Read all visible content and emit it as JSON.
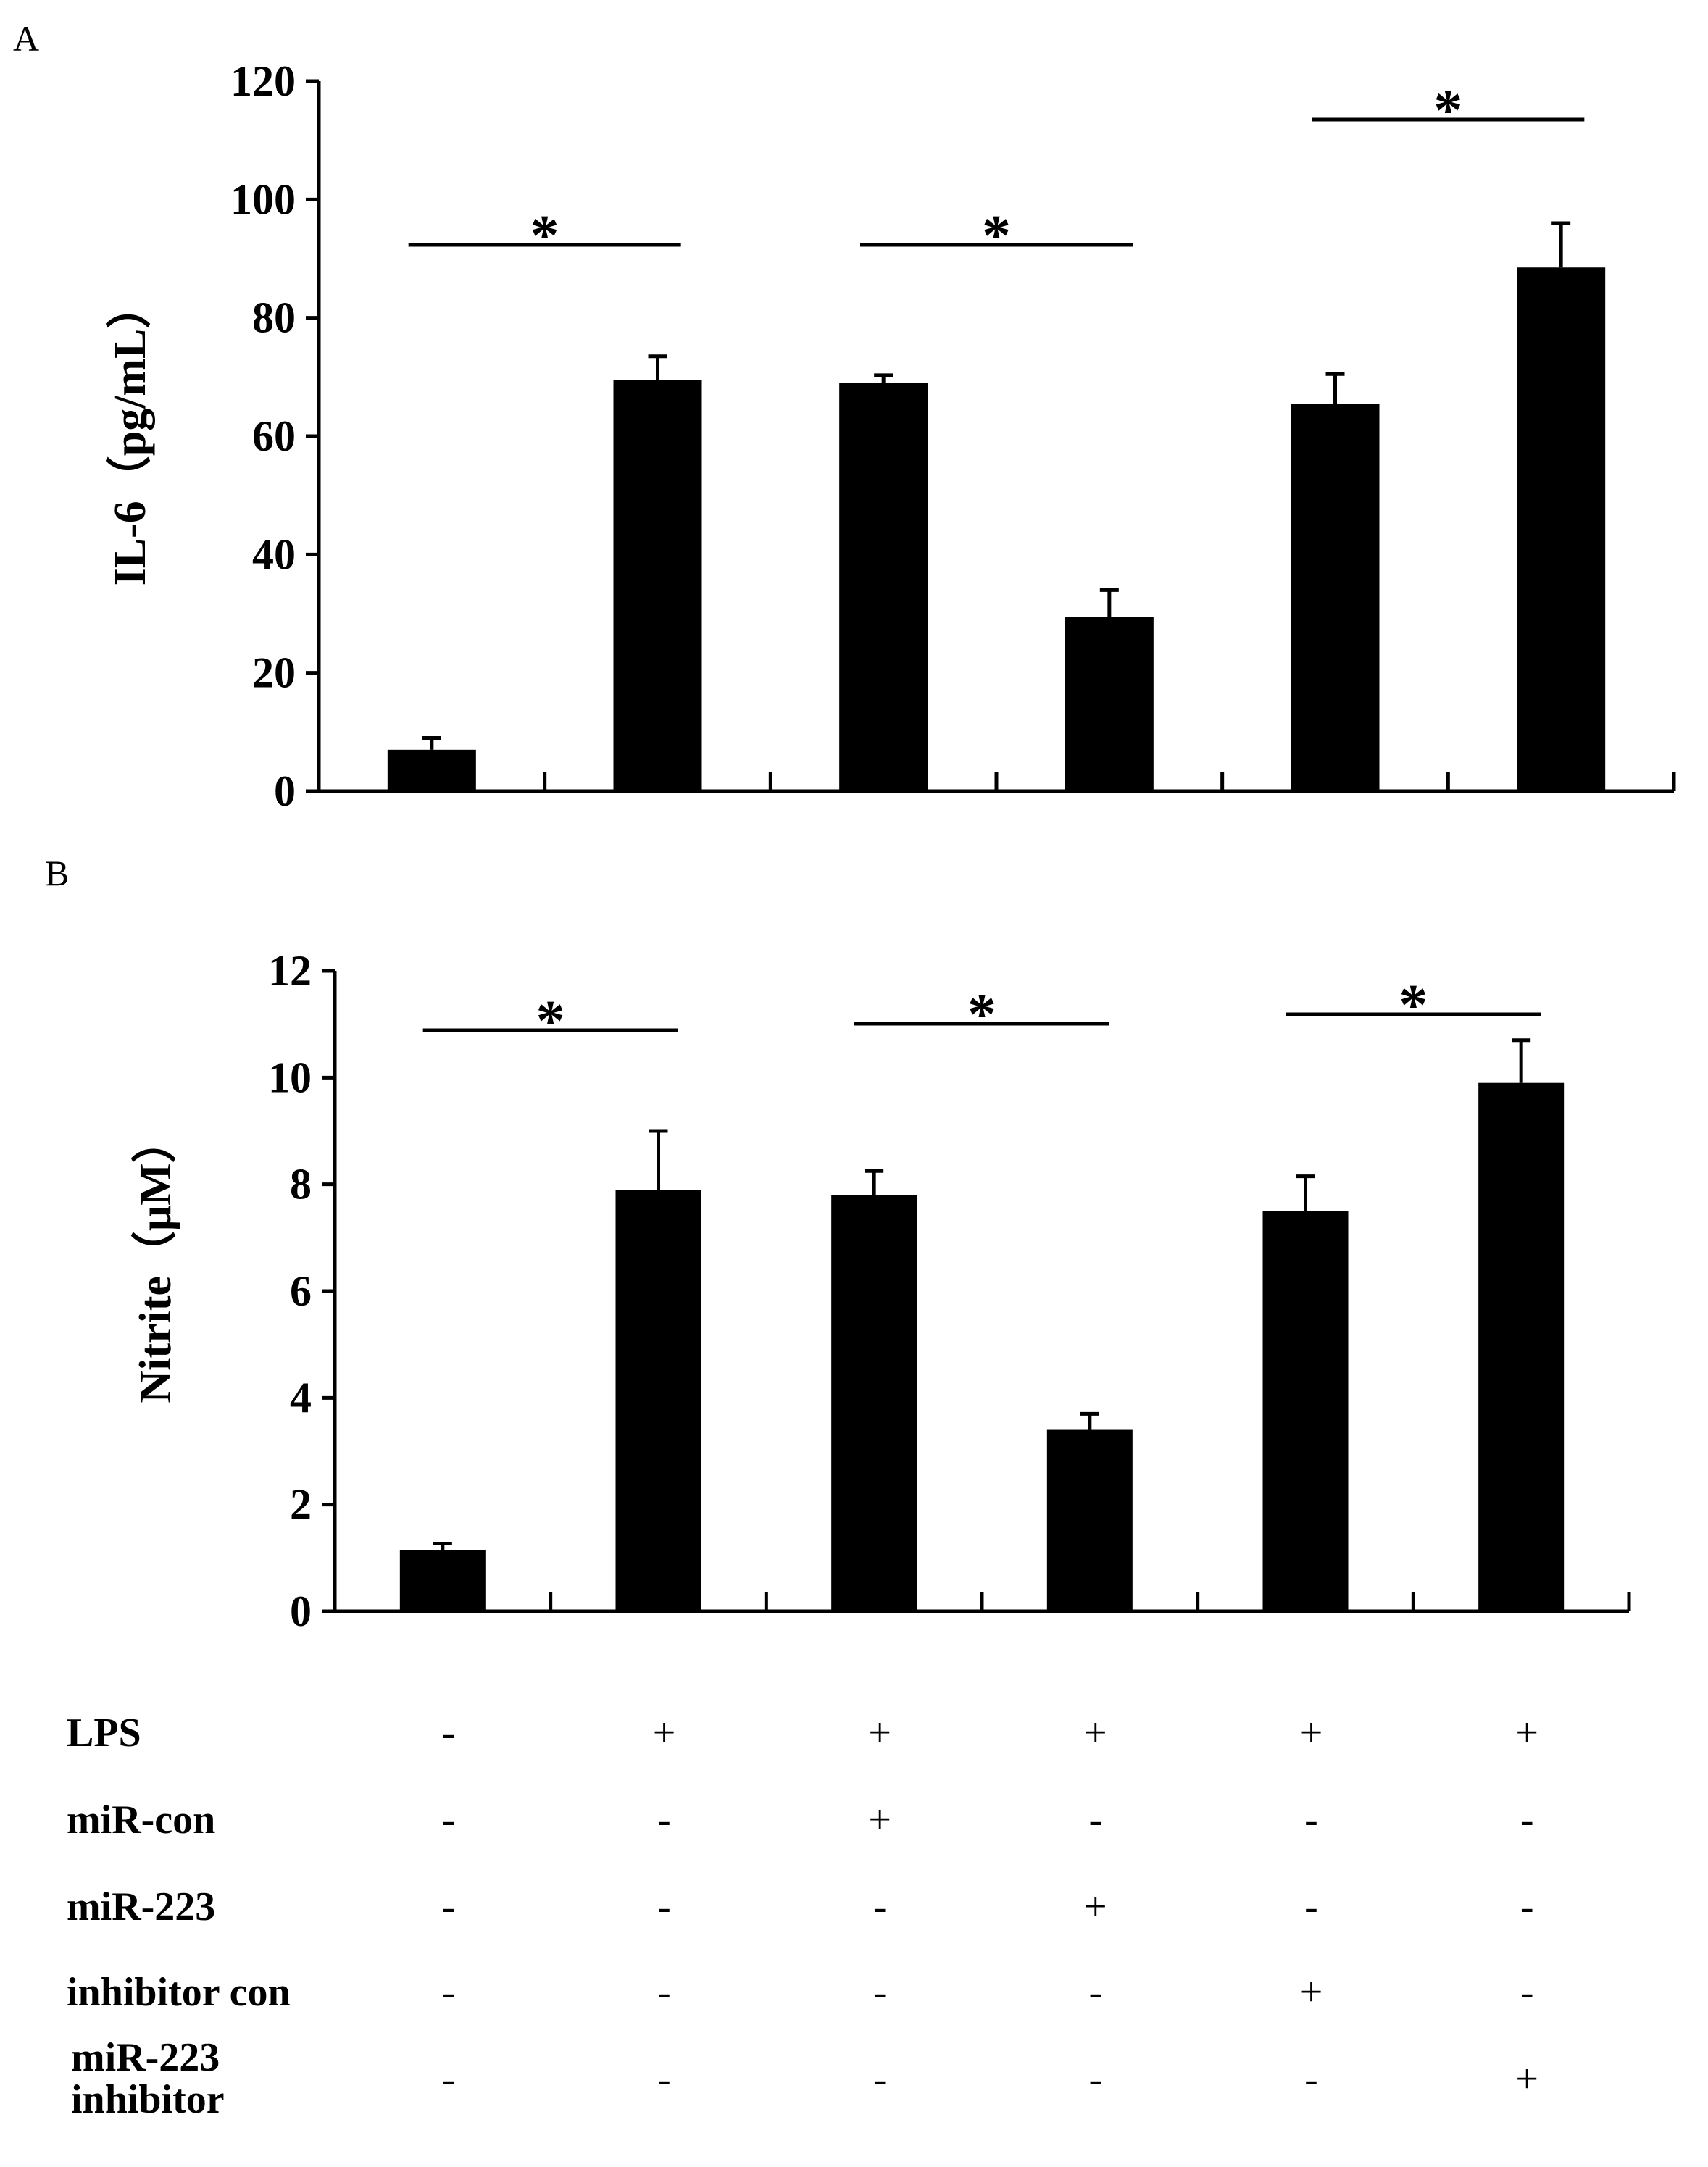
{
  "chart_data": [
    {
      "type": "bar",
      "panel": "A",
      "ylabel": "IL-6（pg/mL）",
      "ylim": [
        0,
        120
      ],
      "yticks": [
        0,
        20,
        40,
        60,
        80,
        100,
        120
      ],
      "values": [
        7,
        69.5,
        69,
        29.5,
        65.5,
        88.5
      ],
      "errors": [
        2,
        4,
        1.3,
        4.5,
        5,
        7.5
      ],
      "significance": [
        {
          "from": 0,
          "to": 1,
          "label": "*"
        },
        {
          "from": 2,
          "to": 3,
          "label": "*"
        },
        {
          "from": 4,
          "to": 5,
          "label": "*"
        }
      ]
    },
    {
      "type": "bar",
      "panel": "B",
      "ylabel": "Nitrite（μM）",
      "ylim": [
        0,
        12
      ],
      "yticks": [
        0,
        2,
        4,
        6,
        8,
        10,
        12
      ],
      "values": [
        1.15,
        7.9,
        7.8,
        3.4,
        7.5,
        9.9
      ],
      "errors": [
        0.12,
        1.1,
        0.45,
        0.3,
        0.65,
        0.8
      ],
      "significance": [
        {
          "from": 0,
          "to": 1,
          "label": "*"
        },
        {
          "from": 2,
          "to": 3,
          "label": "*"
        },
        {
          "from": 4,
          "to": 5,
          "label": "*"
        }
      ]
    }
  ],
  "treatment_table": {
    "rows": [
      {
        "label": [
          "LPS"
        ],
        "cells": [
          "-",
          "+",
          "+",
          "+",
          "+",
          "+"
        ]
      },
      {
        "label": [
          "miR-con"
        ],
        "cells": [
          "-",
          "-",
          "+",
          "-",
          "-",
          "-"
        ]
      },
      {
        "label": [
          "miR-223"
        ],
        "cells": [
          "-",
          "-",
          "-",
          "+",
          "-",
          "-"
        ]
      },
      {
        "label": [
          "inhibitor con"
        ],
        "cells": [
          "-",
          "-",
          "-",
          "-",
          "+",
          "-"
        ]
      },
      {
        "label": [
          "miR-223",
          "inhibitor"
        ],
        "cells": [
          "-",
          "-",
          "-",
          "-",
          "-",
          "+"
        ]
      }
    ]
  }
}
